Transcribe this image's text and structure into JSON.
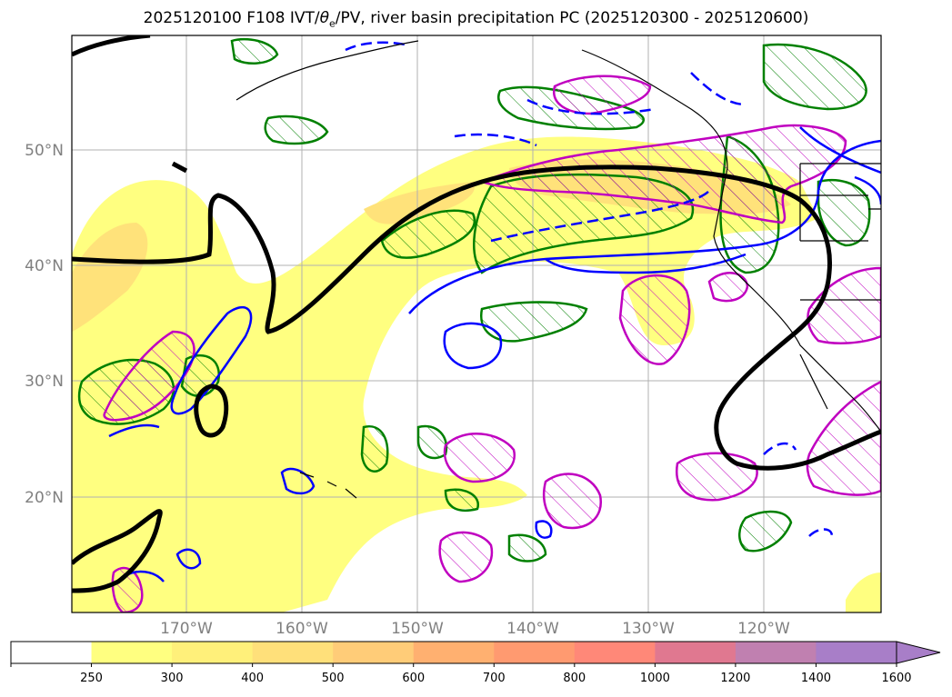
{
  "title": {
    "prefix": "2025120100 F108 IVT/",
    "theta": "θ",
    "theta_sub": "e",
    "suffix": "/PV, river basin precipitation PC (2025120300 - 2025120600)"
  },
  "map": {
    "lat_labels": [
      "50°N",
      "40°N",
      "30°N",
      "20°N"
    ],
    "lon_labels": [
      "170°W",
      "160°W",
      "150°W",
      "140°W",
      "130°W",
      "120°W"
    ],
    "colors": {
      "pv_contour": "#000000",
      "theta_e_pos": "#0000ff",
      "theta_e_neg": "#0000ff",
      "precip_green": "#008000",
      "pv_magenta": "#c000c0",
      "coast": "#000000",
      "grid": "#b0b0b0"
    }
  },
  "colorbar": {
    "ticks": [
      "250",
      "300",
      "400",
      "500",
      "600",
      "700",
      "800",
      "1000",
      "1200",
      "1400",
      "1600"
    ],
    "colors": [
      "#ffffff",
      "#ffff80",
      "#fff07a",
      "#ffe07a",
      "#ffcc78",
      "#ffb070",
      "#ff9a70",
      "#ff8878",
      "#e07890",
      "#c080b0",
      "#a87ec8"
    ]
  }
}
